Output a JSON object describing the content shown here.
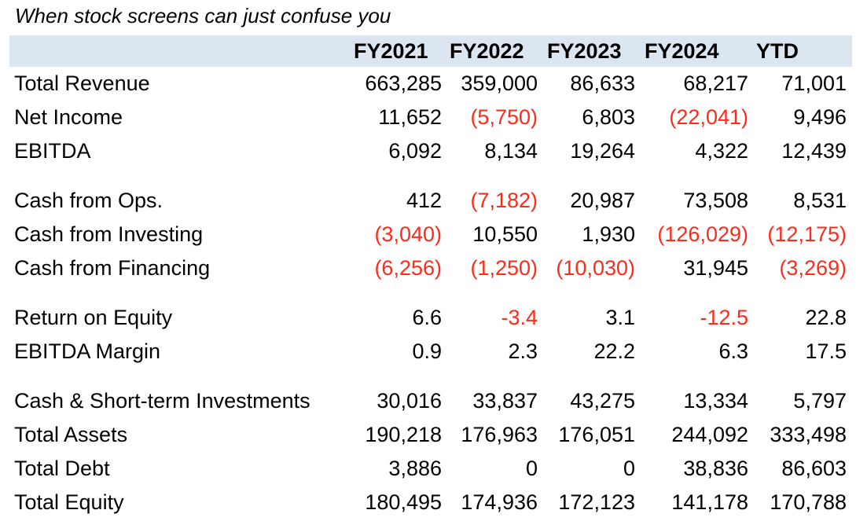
{
  "caption": "When stock screens can just confuse you",
  "table": {
    "columns": [
      "FY2021",
      "FY2022",
      "FY2023",
      "FY2024",
      "YTD"
    ],
    "rows": [
      {
        "label": "Total Revenue",
        "values": [
          "663,285",
          "359,000",
          "86,633",
          "68,217",
          "71,001"
        ],
        "negative": [
          false,
          false,
          false,
          false,
          false
        ]
      },
      {
        "label": "Net Income",
        "values": [
          "11,652",
          "(5,750)",
          "6,803",
          "(22,041)",
          "9,496"
        ],
        "negative": [
          false,
          true,
          false,
          true,
          false
        ]
      },
      {
        "label": "EBITDA",
        "values": [
          "6,092",
          "8,134",
          "19,264",
          "4,322",
          "12,439"
        ],
        "negative": [
          false,
          false,
          false,
          false,
          false
        ]
      },
      {
        "label": "Cash from Ops.",
        "values": [
          "412",
          "(7,182)",
          "20,987",
          "73,508",
          "8,531"
        ],
        "negative": [
          false,
          true,
          false,
          false,
          false
        ]
      },
      {
        "label": "Cash from Investing",
        "values": [
          "(3,040)",
          "10,550",
          "1,930",
          "(126,029)",
          "(12,175)"
        ],
        "negative": [
          true,
          false,
          false,
          true,
          true
        ]
      },
      {
        "label": "Cash from Financing",
        "values": [
          "(6,256)",
          "(1,250)",
          "(10,030)",
          "31,945",
          "(3,269)"
        ],
        "negative": [
          true,
          true,
          true,
          false,
          true
        ]
      },
      {
        "label": "Return on Equity",
        "values": [
          "6.6",
          "-3.4",
          "3.1",
          "-12.5",
          "22.8"
        ],
        "negative": [
          false,
          true,
          false,
          true,
          false
        ]
      },
      {
        "label": "EBITDA Margin",
        "values": [
          "0.9",
          "2.3",
          "22.2",
          "6.3",
          "17.5"
        ],
        "negative": [
          false,
          false,
          false,
          false,
          false
        ]
      },
      {
        "label": "Cash & Short-term Investments",
        "values": [
          "30,016",
          "33,837",
          "43,275",
          "13,334",
          "5,797"
        ],
        "negative": [
          false,
          false,
          false,
          false,
          false
        ]
      },
      {
        "label": "Total Assets",
        "values": [
          "190,218",
          "176,963",
          "176,051",
          "244,092",
          "333,498"
        ],
        "negative": [
          false,
          false,
          false,
          false,
          false
        ]
      },
      {
        "label": "Total Debt",
        "values": [
          "3,886",
          "0",
          "0",
          "38,836",
          "86,603"
        ],
        "negative": [
          false,
          false,
          false,
          false,
          false
        ]
      },
      {
        "label": "Total Equity",
        "values": [
          "180,495",
          "174,936",
          "172,123",
          "141,178",
          "170,788"
        ],
        "negative": [
          false,
          false,
          false,
          false,
          false
        ]
      }
    ]
  },
  "colors": {
    "header_fill": "#dce6f1",
    "negative_text": "#ff2a1a",
    "text": "#000000"
  }
}
